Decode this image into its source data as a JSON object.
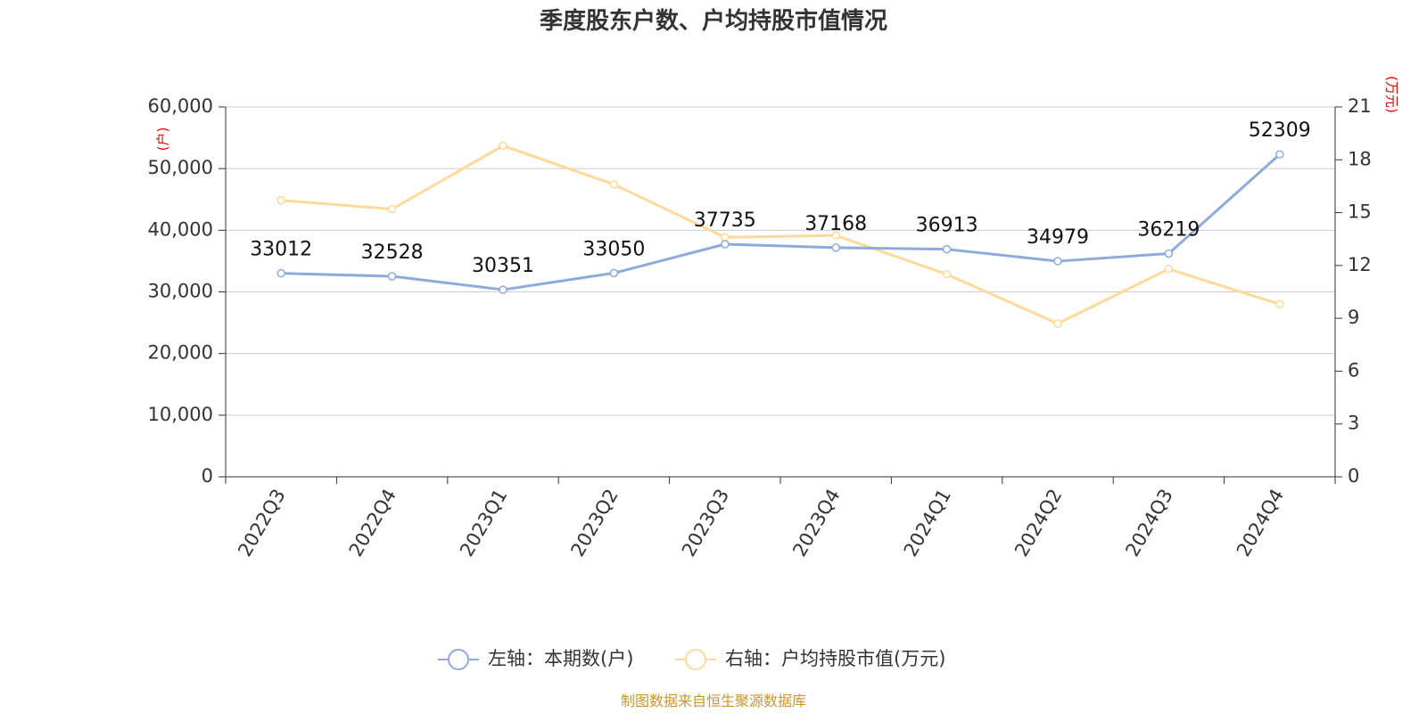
{
  "title": "季度股东户数、户均持股市值情况",
  "source": "制图数据来自恒生聚源数据库",
  "colors": {
    "left_series": "#8eaadb",
    "right_series": "#ffd999",
    "unit": "#e60000",
    "source": "#c8962e"
  },
  "chart_data": {
    "type": "line",
    "title": "季度股东户数、户均持股市值情况",
    "categories": [
      "2022Q3",
      "2022Q4",
      "2023Q1",
      "2023Q2",
      "2023Q3",
      "2023Q4",
      "2024Q1",
      "2024Q2",
      "2024Q3",
      "2024Q4"
    ],
    "left_axis": {
      "unit": "(户)",
      "min": 0,
      "max": 60000,
      "ticks": [
        "0",
        "10,000",
        "20,000",
        "30,000",
        "40,000",
        "50,000",
        "60,000"
      ]
    },
    "right_axis": {
      "unit": "(万元)",
      "min": 0,
      "max": 21,
      "ticks": [
        "0",
        "3",
        "6",
        "9",
        "12",
        "15",
        "18",
        "21"
      ]
    },
    "series": [
      {
        "name": "左轴：本期数(户)",
        "axis": "left",
        "color": "#8eaadb",
        "values": [
          33012,
          32528,
          30351,
          33050,
          37735,
          37168,
          36913,
          34979,
          36219,
          52309
        ],
        "labels": [
          "33012",
          "32528",
          "30351",
          "33050",
          "37735",
          "37168",
          "36913",
          "34979",
          "36219",
          "52309"
        ]
      },
      {
        "name": "右轴：户均持股市值(万元)",
        "axis": "right",
        "color": "#ffd999",
        "values": [
          15.7,
          15.2,
          18.8,
          16.6,
          13.6,
          13.7,
          11.5,
          8.7,
          11.8,
          9.8
        ]
      }
    ],
    "grid": true,
    "legend": "bottom-center"
  }
}
